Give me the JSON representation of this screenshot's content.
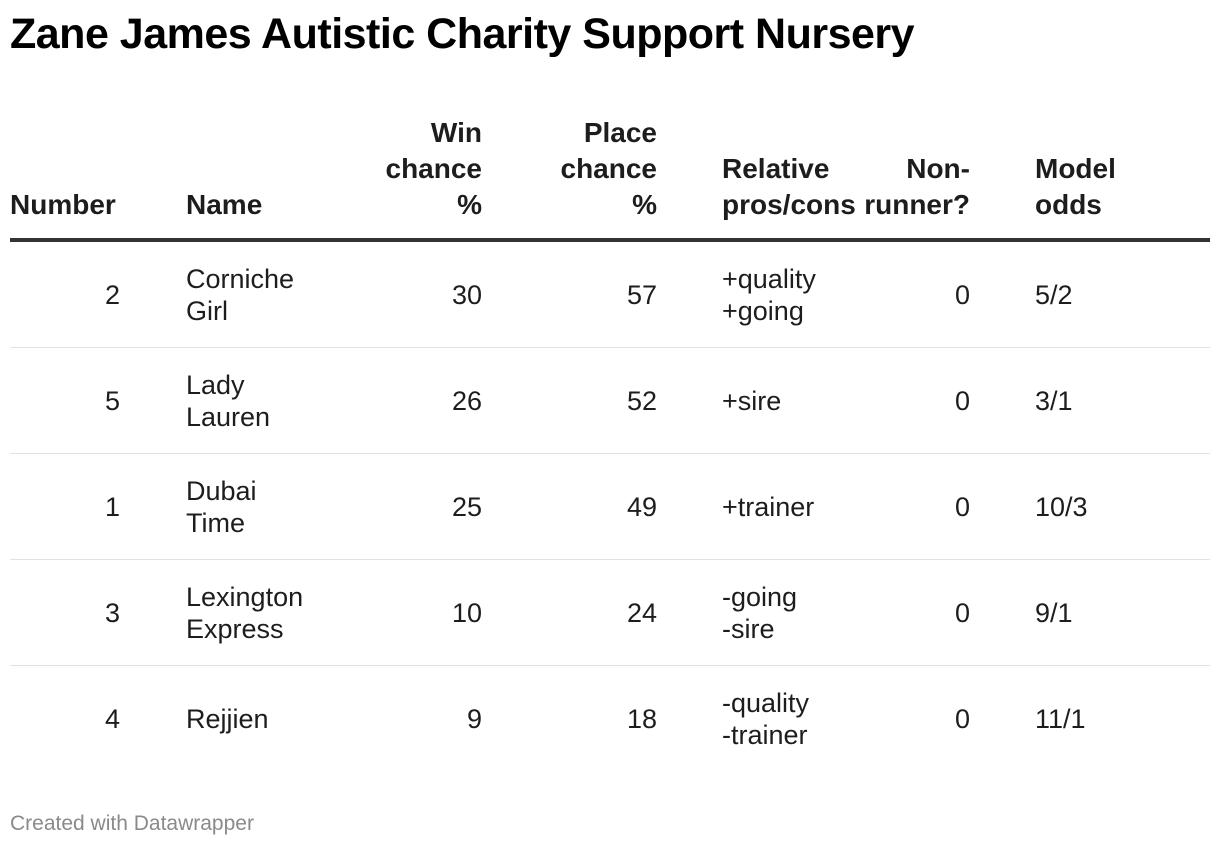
{
  "title": "Zane James Autistic Charity Support Nursery",
  "footer": "Created with Datawrapper",
  "chart_data": {
    "type": "table",
    "title": "Zane James Autistic Charity Support Nursery",
    "columns": [
      "Number",
      "Name",
      "Win\nchance\n%",
      "Place\nchance\n%",
      "Relative\npros/cons",
      "Non-\nrunner?",
      "Model\nodds"
    ],
    "rows": [
      {
        "number": "2",
        "name": "Corniche\nGirl",
        "win": "30",
        "place": "57",
        "proscons": "+quality\n+going",
        "nonrunner": "0",
        "odds": "5/2"
      },
      {
        "number": "5",
        "name": "Lady\nLauren",
        "win": "26",
        "place": "52",
        "proscons": "+sire",
        "nonrunner": "0",
        "odds": "3/1"
      },
      {
        "number": "1",
        "name": "Dubai\nTime",
        "win": "25",
        "place": "49",
        "proscons": "+trainer",
        "nonrunner": "0",
        "odds": "10/3"
      },
      {
        "number": "3",
        "name": "Lexington\nExpress",
        "win": "10",
        "place": "24",
        "proscons": "-going\n-sire",
        "nonrunner": "0",
        "odds": "9/1"
      },
      {
        "number": "4",
        "name": "Rejjien",
        "win": "9",
        "place": "18",
        "proscons": "-quality\n-trainer",
        "nonrunner": "0",
        "odds": "11/1"
      }
    ]
  }
}
